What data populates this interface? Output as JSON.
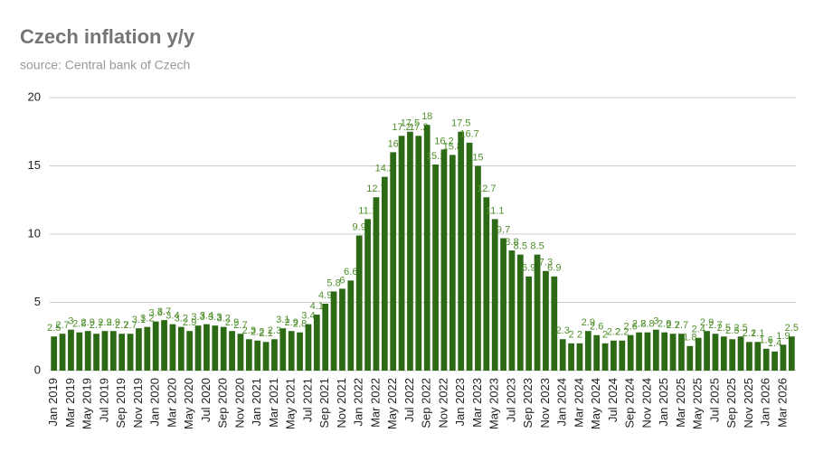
{
  "chart_data": {
    "type": "bar",
    "title": "Czech inflation y/y",
    "subtitle": "source: Central bank of Czech",
    "categories": [
      "Jan 2019",
      null,
      "Mar 2019",
      null,
      "May 2019",
      null,
      "Jul 2019",
      null,
      "Sep 2019",
      null,
      "Nov 2019",
      null,
      "Jan 2020",
      null,
      "Mar 2020",
      null,
      "May 2020",
      null,
      "Jul 2020",
      null,
      "Sep 2020",
      null,
      "Nov 2020",
      null,
      "Jan 2021",
      null,
      "Mar 2021",
      null,
      "May 2021",
      null,
      "Jul 2021",
      null,
      "Sep 2021",
      null,
      "Nov 2021",
      null,
      "Jan 2022",
      null,
      "Mar 2022",
      null,
      "May 2022",
      null,
      "Jul 2022",
      null,
      "Sep 2022",
      null,
      "Nov 2022",
      null,
      "Jan 2023",
      null,
      "Mar 2023",
      null,
      "May 2023",
      null,
      "Jul 2023",
      null,
      "Sep 2023",
      null,
      "Nov 2023",
      null,
      "Jan 2024",
      null,
      "Mar 2024",
      null,
      "May 2024",
      null,
      "Jul 2024",
      null,
      "Sep 2024",
      null,
      "Nov 2024",
      null,
      "Jan 2025",
      null,
      "Mar 2025",
      null,
      "May 2025",
      null,
      "Jul 2025",
      null,
      "Sep 2025",
      null,
      "Nov 2025",
      null,
      "Jan 2026",
      null,
      "Mar 2026",
      null
    ],
    "values": [
      2.5,
      2.7,
      3.0,
      2.8,
      2.9,
      2.7,
      2.9,
      2.9,
      2.7,
      2.7,
      3.1,
      3.2,
      3.6,
      3.7,
      3.4,
      3.2,
      2.9,
      3.3,
      3.4,
      3.3,
      3.2,
      2.9,
      2.7,
      2.3,
      2.2,
      2.1,
      2.3,
      3.1,
      2.9,
      2.8,
      3.4,
      4.1,
      4.9,
      5.8,
      6.0,
      6.6,
      9.9,
      11.1,
      12.7,
      14.2,
      16,
      17.2,
      17.5,
      17.2,
      18,
      15.1,
      16.2,
      15.8,
      17.5,
      16.7,
      15,
      12.7,
      11.1,
      9.7,
      8.8,
      8.5,
      6.9,
      8.5,
      7.3,
      6.9,
      2.3,
      2.0,
      2.0,
      2.9,
      2.6,
      2.0,
      2.2,
      2.2,
      2.6,
      2.8,
      2.8,
      3.0,
      2.8,
      2.7,
      2.7,
      1.8,
      2.4,
      2.9,
      2.7,
      2.5,
      2.3,
      2.5,
      2.1,
      2.1,
      1.6,
      1.4,
      1.9,
      2.5
    ],
    "color": "#2d6a16",
    "label_color": "#4f8f2c",
    "ylim": [
      0,
      20
    ],
    "yticks": [
      0,
      5,
      10,
      15,
      20
    ],
    "grid": true
  }
}
